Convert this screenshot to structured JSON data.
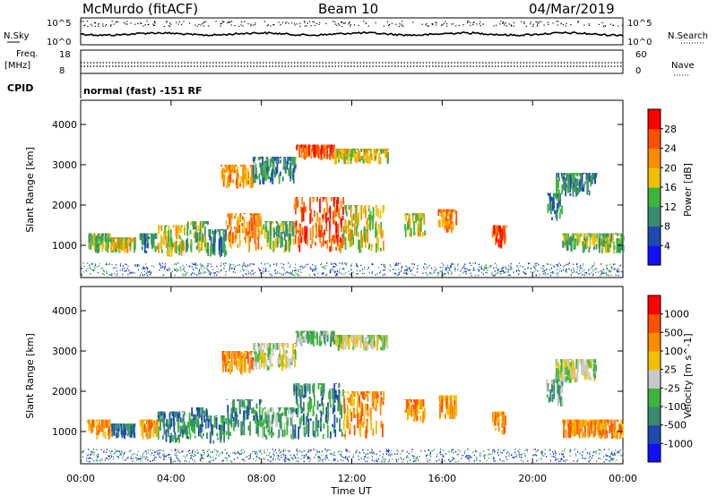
{
  "header": {
    "station": "McMurdo (fitACF)",
    "beam": "Beam 10",
    "date": "04/Mar/2019"
  },
  "top_panels": {
    "noise_label_left": "N.Sky",
    "noise_label_right": "N.Search",
    "noise_ticks_left": [
      "10^5",
      "10^0"
    ],
    "noise_ticks_right": [
      "10^5",
      "10^0"
    ],
    "freq_label_top": "Freq.",
    "freq_label_unit": "[MHz]",
    "freq_ticks": [
      "18",
      "8"
    ],
    "nave_label": "Nave",
    "nave_ticks": [
      "60",
      "0"
    ],
    "cpid_label": "CPID",
    "cpid_value": "normal (fast) -151 RF"
  },
  "chart_data": [
    {
      "type": "heatmap",
      "name": "power",
      "ylabel": "Slant Range [km]",
      "ylim": [
        200,
        4600
      ],
      "y_ticks": [
        "1000",
        "2000",
        "3000",
        "4000"
      ],
      "y_tick_values": [
        1000,
        2000,
        3000,
        4000
      ],
      "colorbar_label": "Power [dB]",
      "colorbar_ticks": [
        "4",
        "8",
        "12",
        "16",
        "20",
        "24",
        "28"
      ],
      "colorbar_colors": [
        "#1010ff",
        "#1e4ab0",
        "#3a8a6e",
        "#3cb43c",
        "#f0c000",
        "#ff8c00",
        "#ff5000",
        "#ff0000"
      ],
      "echo_patches": [
        {
          "t": [
            0.3,
            1.3
          ],
          "r": [
            800,
            1300
          ],
          "c": 3
        },
        {
          "t": [
            1.3,
            2.4
          ],
          "r": [
            800,
            1200
          ],
          "c": 4
        },
        {
          "t": [
            2.6,
            3.4
          ],
          "r": [
            800,
            1300
          ],
          "c": 2
        },
        {
          "t": [
            3.4,
            4.6
          ],
          "r": [
            700,
            1500
          ],
          "c": 4
        },
        {
          "t": [
            4.6,
            5.6
          ],
          "r": [
            800,
            1600
          ],
          "c": 3
        },
        {
          "t": [
            5.6,
            6.4
          ],
          "r": [
            700,
            1400
          ],
          "c": 2
        },
        {
          "t": [
            6.4,
            8.0
          ],
          "r": [
            800,
            1800
          ],
          "c": 5
        },
        {
          "t": [
            8.0,
            9.4
          ],
          "r": [
            800,
            1600
          ],
          "c": 3
        },
        {
          "t": [
            9.4,
            11.6
          ],
          "r": [
            800,
            2200
          ],
          "c": 6
        },
        {
          "t": [
            11.6,
            13.4
          ],
          "r": [
            800,
            2000
          ],
          "c": 4
        },
        {
          "t": [
            14.3,
            15.2
          ],
          "r": [
            1200,
            1800
          ],
          "c": 4
        },
        {
          "t": [
            15.8,
            16.6
          ],
          "r": [
            1300,
            1900
          ],
          "c": 5
        },
        {
          "t": [
            18.2,
            18.8
          ],
          "r": [
            900,
            1500
          ],
          "c": 6
        },
        {
          "t": [
            20.6,
            21.3
          ],
          "r": [
            1600,
            2300
          ],
          "c": 2
        },
        {
          "t": [
            21.3,
            24.0
          ],
          "r": [
            800,
            1300
          ],
          "c": 3
        },
        {
          "t": [
            6.2,
            7.6
          ],
          "r": [
            2400,
            3000
          ],
          "c": 5
        },
        {
          "t": [
            7.6,
            9.5
          ],
          "r": [
            2500,
            3200
          ],
          "c": 2
        },
        {
          "t": [
            9.5,
            11.2
          ],
          "r": [
            3100,
            3500
          ],
          "c": 6
        },
        {
          "t": [
            11.2,
            13.6
          ],
          "r": [
            3000,
            3400
          ],
          "c": 4
        },
        {
          "t": [
            21.0,
            22.8
          ],
          "r": [
            2200,
            2800
          ],
          "c": 2
        }
      ]
    },
    {
      "type": "heatmap",
      "name": "velocity",
      "ylabel": "Slant Range [km]",
      "ylim": [
        200,
        4600
      ],
      "y_ticks": [
        "1000",
        "2000",
        "3000",
        "4000"
      ],
      "y_tick_values": [
        1000,
        2000,
        3000,
        4000
      ],
      "colorbar_label": "Velocity [m s^-1]",
      "colorbar_ticks": [
        "1000",
        "500",
        "100",
        "25",
        "-25",
        "-100",
        "-500",
        "-1000"
      ],
      "colorbar_colors": [
        "#1010ff",
        "#1e4ab0",
        "#3a8a6e",
        "#3cb43c",
        "#c8c8c8",
        "#f0c000",
        "#ff8c00",
        "#ff5000",
        "#ff0000"
      ],
      "echo_patches": [
        {
          "t": [
            0.3,
            1.3
          ],
          "r": [
            800,
            1300
          ],
          "c": 6
        },
        {
          "t": [
            1.3,
            2.4
          ],
          "r": [
            800,
            1200
          ],
          "c": 2
        },
        {
          "t": [
            2.6,
            3.4
          ],
          "r": [
            800,
            1300
          ],
          "c": 6
        },
        {
          "t": [
            3.4,
            4.6
          ],
          "r": [
            700,
            1500
          ],
          "c": 2
        },
        {
          "t": [
            4.6,
            5.6
          ],
          "r": [
            800,
            1600
          ],
          "c": 2
        },
        {
          "t": [
            5.6,
            6.4
          ],
          "r": [
            700,
            1400
          ],
          "c": 2
        },
        {
          "t": [
            6.4,
            8.0
          ],
          "r": [
            800,
            1800
          ],
          "c": 2
        },
        {
          "t": [
            8.0,
            9.4
          ],
          "r": [
            800,
            1600
          ],
          "c": 3
        },
        {
          "t": [
            9.4,
            11.6
          ],
          "r": [
            800,
            2200
          ],
          "c": 2
        },
        {
          "t": [
            11.6,
            13.4
          ],
          "r": [
            800,
            2000
          ],
          "c": 6
        },
        {
          "t": [
            14.3,
            15.2
          ],
          "r": [
            1200,
            1800
          ],
          "c": 6
        },
        {
          "t": [
            15.8,
            16.6
          ],
          "r": [
            1300,
            1900
          ],
          "c": 6
        },
        {
          "t": [
            18.2,
            18.8
          ],
          "r": [
            900,
            1500
          ],
          "c": 6
        },
        {
          "t": [
            20.6,
            21.3
          ],
          "r": [
            1600,
            2300
          ],
          "c": 3
        },
        {
          "t": [
            21.3,
            24.0
          ],
          "r": [
            800,
            1300
          ],
          "c": 6
        },
        {
          "t": [
            6.2,
            7.6
          ],
          "r": [
            2400,
            3000
          ],
          "c": 6
        },
        {
          "t": [
            7.6,
            9.5
          ],
          "r": [
            2500,
            3200
          ],
          "c": 4
        },
        {
          "t": [
            9.5,
            11.2
          ],
          "r": [
            3100,
            3500
          ],
          "c": 3
        },
        {
          "t": [
            11.2,
            13.6
          ],
          "r": [
            3000,
            3400
          ],
          "c": 4
        },
        {
          "t": [
            21.0,
            22.8
          ],
          "r": [
            2200,
            2800
          ],
          "c": 4
        }
      ]
    }
  ],
  "time_axis": {
    "label": "Time UT",
    "ticks": [
      "00:00",
      "04:00",
      "08:00",
      "12:00",
      "16:00",
      "20:00",
      "00:00"
    ],
    "tick_hours": [
      0,
      4,
      8,
      12,
      16,
      20,
      24
    ],
    "range_hours": [
      0,
      24
    ]
  }
}
